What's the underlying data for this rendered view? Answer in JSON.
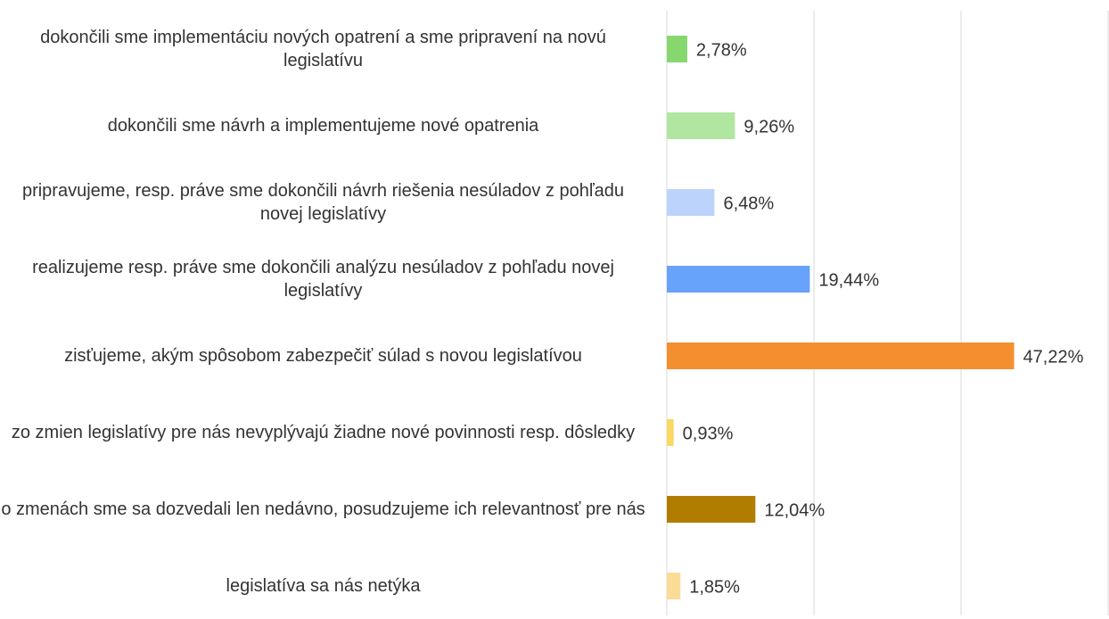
{
  "chart_data": {
    "type": "bar",
    "orientation": "horizontal",
    "categories": [
      "dokončili sme implementáciu nových opatrení a sme pripravení na novú legislatívu",
      "dokončili sme návrh a implementujeme nové opatrenia",
      "pripravujeme, resp. práve sme dokončili návrh riešenia nesúladov z pohľadu novej legislatívy",
      "realizujeme resp. práve sme dokončili analýzu nesúladov z pohľadu novej legislatívy",
      "zisťujeme, akým spôsobom zabezpečiť súlad s novou legislatívou",
      "zo zmien legislatívy pre nás nevyplývajú žiadne nové povinnosti resp. dôsledky",
      "o zmenách sme sa dozvedali len nedávno, posudzujeme ich relevantnosť pre nás",
      "legislatíva sa nás netýka"
    ],
    "values": [
      2.78,
      9.26,
      6.48,
      19.44,
      47.22,
      0.93,
      12.04,
      1.85
    ],
    "value_labels": [
      "2,78%",
      "9,26%",
      "6,48%",
      "19,44%",
      "47,22%",
      "0,93%",
      "12,04%",
      "1,85%"
    ],
    "colors": [
      "#86d86e",
      "#b1e6a0",
      "#bcd4fb",
      "#67a2fb",
      "#f48f2f",
      "#fbd763",
      "#b07d00",
      "#fbdc96"
    ],
    "xlim": [
      0,
      60
    ],
    "xticks": [
      0,
      20,
      40,
      60
    ],
    "grid": true
  }
}
